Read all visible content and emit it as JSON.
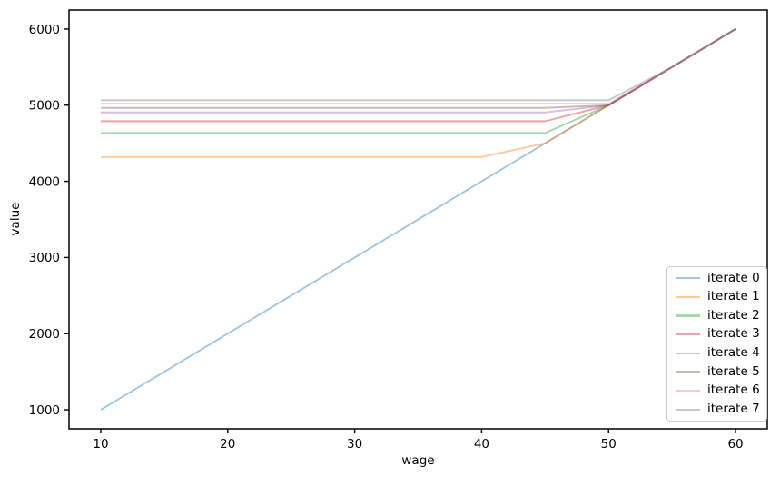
{
  "figure": {
    "background": "#ffffff"
  },
  "chart_data": {
    "type": "line",
    "title": "",
    "xlabel": "wage",
    "ylabel": "value",
    "xlim": [
      7.5,
      62.5
    ],
    "ylim": [
      750,
      6250
    ],
    "x_ticks": [
      10,
      20,
      30,
      40,
      50,
      60
    ],
    "y_ticks": [
      1000,
      2000,
      3000,
      4000,
      5000,
      6000
    ],
    "grid": false,
    "legend_position": "lower right",
    "line_alpha": 0.42,
    "x": [
      10,
      15,
      20,
      25,
      30,
      35,
      40,
      45,
      50,
      55,
      60
    ],
    "series": [
      {
        "name": "iterate 0",
        "color": "#1f77b4",
        "values": [
          1000,
          1500,
          2000,
          2500,
          3000,
          3500,
          4000,
          4500,
          5000,
          5500,
          6000
        ]
      },
      {
        "name": "iterate 1",
        "color": "#ff7f0e",
        "values": [
          4320,
          4320,
          4320,
          4320,
          4320,
          4320,
          4320,
          4500,
          5000,
          5500,
          6000
        ]
      },
      {
        "name": "iterate 2",
        "color": "#2ca02c",
        "values": [
          4635,
          4635,
          4635,
          4635,
          4635,
          4635,
          4635,
          4635,
          5000,
          5500,
          6000
        ]
      },
      {
        "name": "iterate 3",
        "color": "#d62728",
        "values": [
          4790,
          4790,
          4790,
          4790,
          4790,
          4790,
          4790,
          4790,
          5000,
          5500,
          6000
        ]
      },
      {
        "name": "iterate 4",
        "color": "#9467bd",
        "values": [
          4905,
          4905,
          4905,
          4905,
          4905,
          4905,
          4905,
          4905,
          5000,
          5500,
          6000
        ]
      },
      {
        "name": "iterate 5",
        "color": "#8c564b",
        "values": [
          4965,
          4965,
          4965,
          4965,
          4965,
          4965,
          4965,
          4965,
          5000,
          5500,
          6000
        ]
      },
      {
        "name": "iterate 6",
        "color": "#e377c2",
        "values": [
          5020,
          5020,
          5020,
          5020,
          5020,
          5020,
          5020,
          5020,
          5020,
          5500,
          6000
        ]
      },
      {
        "name": "iterate 7",
        "color": "#7f7f7f",
        "values": [
          5065,
          5065,
          5065,
          5065,
          5065,
          5065,
          5065,
          5065,
          5065,
          5500,
          6000
        ]
      }
    ]
  }
}
